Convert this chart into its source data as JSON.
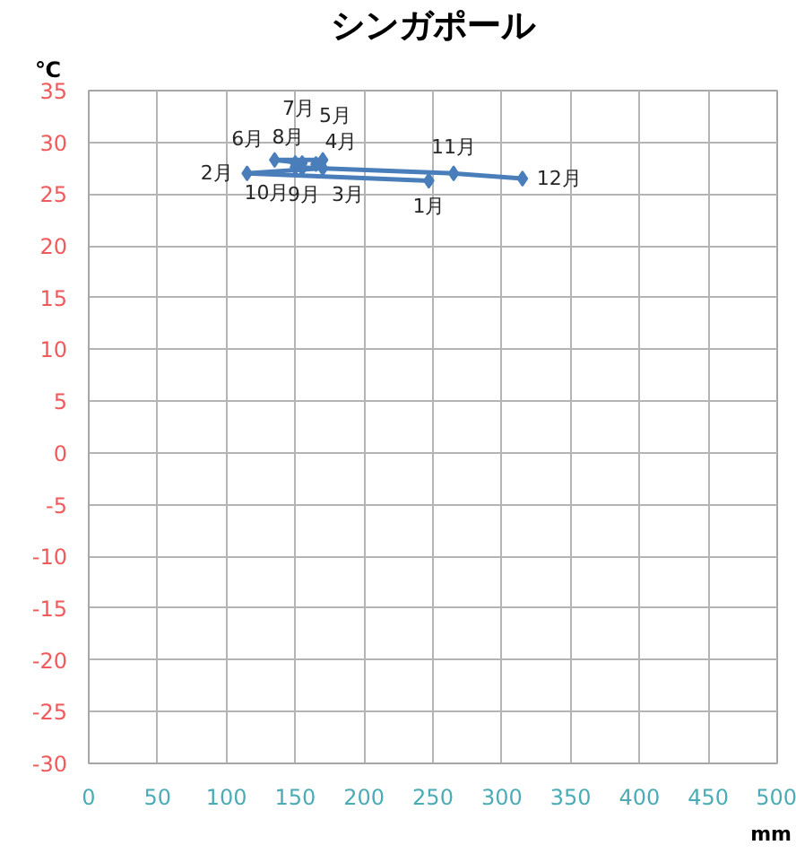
{
  "chart_data": {
    "type": "line",
    "title": "シンガポール",
    "xlabel": "mm",
    "ylabel": "℃",
    "x": [
      247,
      115,
      170,
      165,
      170,
      135,
      155,
      150,
      155,
      150,
      265,
      315
    ],
    "values": [
      26.3,
      27.0,
      27.5,
      27.9,
      28.3,
      28.3,
      28.0,
      28.0,
      27.5,
      27.6,
      27.0,
      26.5
    ],
    "annotations": [
      {
        "text": "1月",
        "x": 247,
        "y": 26.3
      },
      {
        "text": "2月",
        "x": 115,
        "y": 27.0
      },
      {
        "text": "3月",
        "x": 170,
        "y": 27.5
      },
      {
        "text": "4月",
        "x": 165,
        "y": 27.9
      },
      {
        "text": "5月",
        "x": 170,
        "y": 28.3
      },
      {
        "text": "6月",
        "x": 135,
        "y": 28.3
      },
      {
        "text": "7月",
        "x": 155,
        "y": 28.0
      },
      {
        "text": "8月",
        "x": 150,
        "y": 28.0
      },
      {
        "text": "9月",
        "x": 155,
        "y": 27.5
      },
      {
        "text": "10月",
        "x": 150,
        "y": 27.6
      },
      {
        "text": "11月",
        "x": 265,
        "y": 27.0
      },
      {
        "text": "12月",
        "x": 315,
        "y": 26.5
      }
    ],
    "color": "#4a7ebb",
    "marker": "diamond",
    "line_style": "solid",
    "grid": true,
    "xlim": [
      0,
      500
    ],
    "xticks": [
      0,
      50,
      100,
      150,
      200,
      250,
      300,
      350,
      400,
      450,
      500
    ],
    "ylim": [
      -30,
      35
    ],
    "yticks": [
      -30,
      -25,
      -20,
      -15,
      -10,
      -5,
      0,
      5,
      10,
      15,
      20,
      25,
      30,
      35
    ]
  }
}
